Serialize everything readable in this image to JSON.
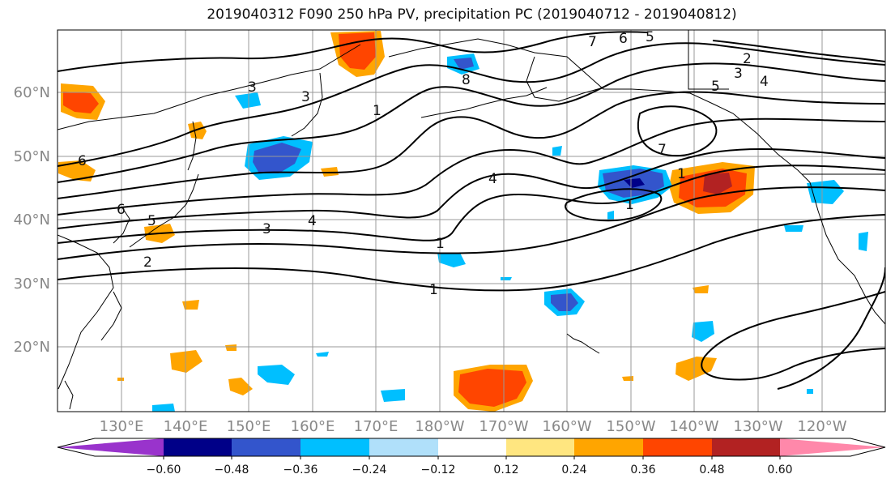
{
  "title": "2019040312 F090 250 hPa PV, precipitation PC (2019040712 - 2019040812)",
  "map": {
    "lat_labels": [
      "60°N",
      "50°N",
      "40°N",
      "30°N",
      "20°N"
    ],
    "lon_labels": [
      "130°E",
      "140°E",
      "150°E",
      "160°E",
      "170°E",
      "180°W",
      "170°W",
      "160°W",
      "150°W",
      "140°W",
      "130°W",
      "120°W"
    ],
    "contour_labels": [
      "3",
      "3",
      "1",
      "8",
      "7",
      "6",
      "5",
      "2",
      "3",
      "4",
      "5",
      "7",
      "1",
      "1",
      "4",
      "6",
      "6",
      "5",
      "3",
      "4",
      "1",
      "1",
      "2"
    ]
  },
  "colorbar": {
    "colors": [
      "#9933cc",
      "#000088",
      "#3355cc",
      "#00bfff",
      "#b0e0fa",
      "#ffffff",
      "#ffe680",
      "#ffa500",
      "#ff4500",
      "#b22222",
      "#ff88aa"
    ],
    "tick_labels": [
      "−0.60",
      "−0.48",
      "−0.36",
      "−0.24",
      "−0.12",
      "0.12",
      "0.24",
      "0.36",
      "0.48",
      "0.60"
    ]
  },
  "colors": {
    "contour": "#000000",
    "grid": "#999999",
    "coast": "#000000",
    "axis_label": "#888888"
  }
}
